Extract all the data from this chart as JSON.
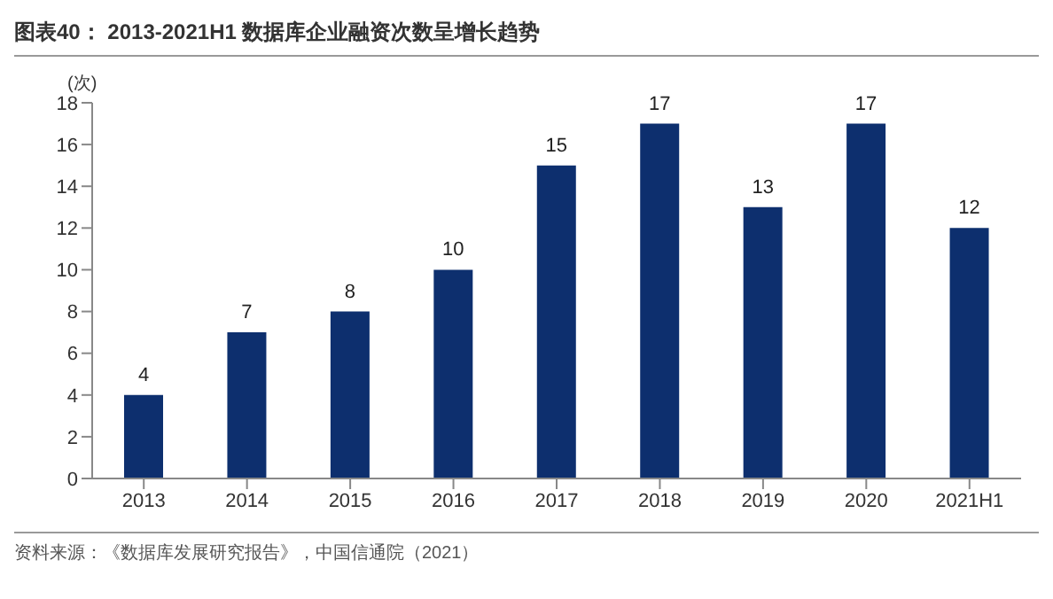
{
  "chart_data": {
    "type": "bar",
    "title": "图表40： 2013-2021H1 数据库企业融资次数呈增长趋势",
    "ylabel": "(次)",
    "categories": [
      "2013",
      "2014",
      "2015",
      "2016",
      "2017",
      "2018",
      "2019",
      "2020",
      "2021H1"
    ],
    "values": [
      4,
      7,
      8,
      10,
      15,
      17,
      13,
      17,
      12
    ],
    "color": "#0d2f6e",
    "ylim": [
      0,
      18
    ],
    "yticks": [
      0,
      2,
      4,
      6,
      8,
      10,
      12,
      14,
      16,
      18
    ],
    "grid": false,
    "data_labels": true,
    "annotations": [
      "资料来源：《数据库发展研究报告》，中国信通院（2021）"
    ]
  }
}
